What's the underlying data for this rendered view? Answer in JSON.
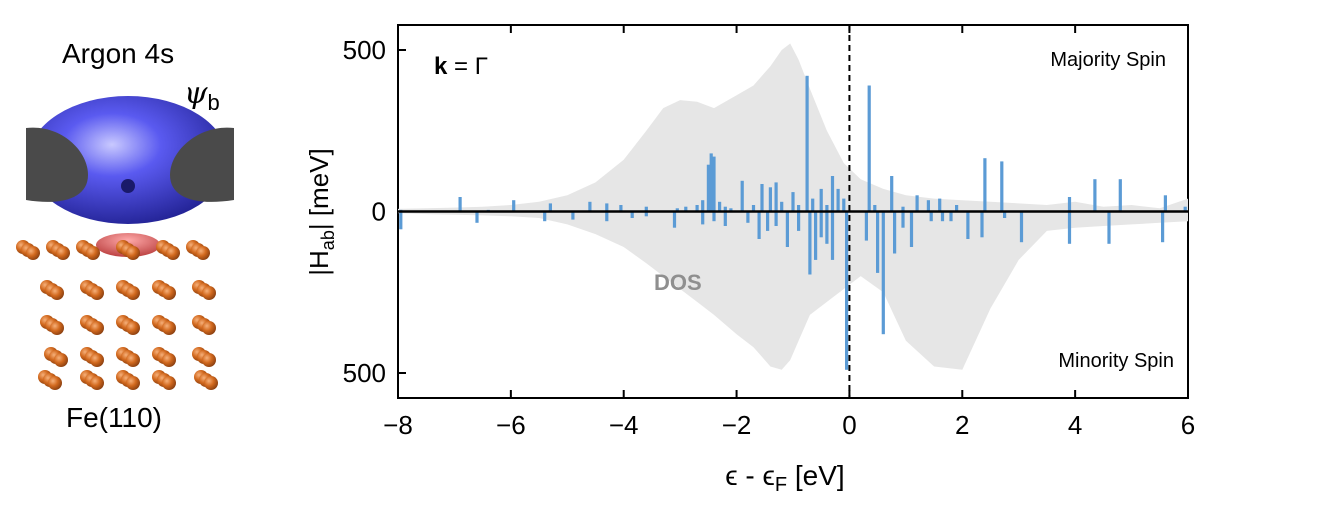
{
  "illustration": {
    "title": "Argon 4s",
    "wavefunction_symbol": "ψ",
    "wavefunction_subscript": "b",
    "substrate_label": "Fe(110)",
    "colors": {
      "orbital": "#4a4ae0",
      "gray_lobes": "#4a4a4a",
      "fe_atoms": "#d2691e",
      "overlap": "#e04040"
    }
  },
  "chart_data": {
    "type": "bar",
    "kpoint_bold": "k",
    "kpoint_rest": " = Γ",
    "xlabel": "ϵ - ϵF [eV]",
    "ylabel": "|Hab| [meV]",
    "xlim": [
      -8,
      6
    ],
    "ylim": [
      -500,
      500
    ],
    "xticks": [
      "−8",
      "−6",
      "−4",
      "−2",
      "0",
      "2",
      "4",
      "6"
    ],
    "xtick_values": [
      -8,
      -6,
      -4,
      -2,
      0,
      2,
      4,
      6
    ],
    "yticks": [
      "500",
      "0",
      "500"
    ],
    "ytick_values": [
      500,
      0,
      -500
    ],
    "annotations": {
      "top": "Majority Spin",
      "bottom": "Minority Spin",
      "dos": "DOS"
    },
    "colors": {
      "bars": "#5b9bd5",
      "dos_fill": "#e6e6e6",
      "dos_label": "#8f8f8f"
    },
    "dos": {
      "x": [
        -8,
        -7.5,
        -7,
        -6.5,
        -6,
        -5.5,
        -5,
        -4.5,
        -4,
        -3.6,
        -3.3,
        -3,
        -2.7,
        -2.4,
        -2,
        -1.7,
        -1.4,
        -1.2,
        -1.05,
        -0.9,
        -0.7,
        -0.4,
        -0.1,
        0.2,
        0.6,
        1.0,
        1.5,
        2,
        2.5,
        3,
        3.5,
        4,
        4.5,
        5,
        5.5,
        6
      ],
      "upper": [
        8,
        10,
        12,
        15,
        20,
        30,
        50,
        90,
        160,
        250,
        320,
        345,
        340,
        320,
        360,
        390,
        450,
        500,
        520,
        470,
        380,
        250,
        150,
        100,
        70,
        50,
        40,
        35,
        30,
        25,
        20,
        30,
        15,
        20,
        10,
        40
      ],
      "lower": [
        -5,
        -8,
        -10,
        -12,
        -15,
        -20,
        -40,
        -70,
        -110,
        -160,
        -200,
        -240,
        -280,
        -320,
        -380,
        -420,
        -480,
        -490,
        -460,
        -400,
        -320,
        -280,
        -240,
        -200,
        -250,
        -400,
        -480,
        -490,
        -300,
        -150,
        -60,
        -50,
        -45,
        -40,
        -35,
        -30
      ]
    },
    "majority_bars": {
      "x": [
        -7.95,
        -6.9,
        -6.4,
        -5.95,
        -5.3,
        -4.6,
        -4.3,
        -4.05,
        -3.6,
        -3.05,
        -2.9,
        -2.7,
        -2.6,
        -2.5,
        -2.45,
        -2.4,
        -2.3,
        -2.2,
        -2.1,
        -1.9,
        -1.7,
        -1.55,
        -1.4,
        -1.3,
        -1.2,
        -1.0,
        -0.9,
        -0.75,
        -0.65,
        -0.5,
        -0.4,
        -0.3,
        -0.2,
        -0.1,
        0.35,
        0.45,
        0.75,
        0.95,
        1.2,
        1.4,
        1.6,
        1.9,
        2.4,
        2.7,
        3.9,
        4.35,
        4.8,
        5.6,
        5.95
      ],
      "values": [
        5,
        45,
        5,
        35,
        25,
        30,
        25,
        20,
        15,
        10,
        15,
        20,
        35,
        145,
        180,
        170,
        30,
        15,
        10,
        95,
        20,
        85,
        75,
        90,
        30,
        60,
        20,
        420,
        40,
        70,
        20,
        110,
        70,
        40,
        390,
        20,
        110,
        15,
        50,
        35,
        40,
        20,
        165,
        155,
        45,
        100,
        100,
        50,
        15
      ]
    },
    "minority_bars": {
      "x": [
        -7.95,
        -6.6,
        -5.4,
        -4.9,
        -4.3,
        -3.85,
        -3.6,
        -3.1,
        -2.6,
        -2.4,
        -2.2,
        -1.8,
        -1.6,
        -1.45,
        -1.3,
        -1.1,
        -0.9,
        -0.7,
        -0.6,
        -0.5,
        -0.4,
        -0.3,
        -0.05,
        0.3,
        0.5,
        0.6,
        0.8,
        0.95,
        1.1,
        1.45,
        1.65,
        1.8,
        2.1,
        2.35,
        2.75,
        3.05,
        3.9,
        4.6,
        5.55
      ],
      "values": [
        55,
        35,
        30,
        25,
        30,
        20,
        15,
        50,
        40,
        30,
        45,
        35,
        85,
        60,
        45,
        110,
        60,
        195,
        150,
        80,
        100,
        150,
        490,
        90,
        190,
        380,
        130,
        50,
        110,
        30,
        30,
        30,
        85,
        80,
        20,
        95,
        100,
        100,
        95
      ]
    }
  }
}
